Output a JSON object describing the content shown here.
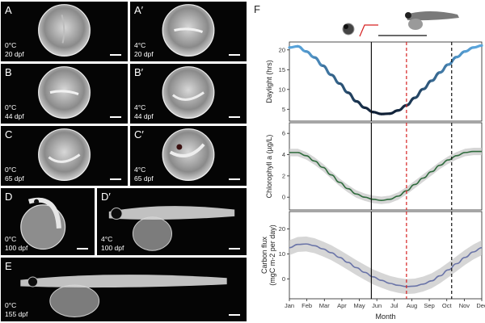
{
  "panels": [
    {
      "id": "A",
      "label": "A",
      "temp": "0°C",
      "age": "20 dpf",
      "stage": "egg-early"
    },
    {
      "id": "A2",
      "label": "A′",
      "temp": "4°C",
      "age": "20 dpf",
      "stage": "egg-embryo"
    },
    {
      "id": "B",
      "label": "B",
      "temp": "0°C",
      "age": "44 dpf",
      "stage": "egg-embryo"
    },
    {
      "id": "B2",
      "label": "B′",
      "temp": "4°C",
      "age": "44 dpf",
      "stage": "egg-curled"
    },
    {
      "id": "C",
      "label": "C",
      "temp": "0°C",
      "age": "65 dpf",
      "stage": "egg-curled"
    },
    {
      "id": "C2",
      "label": "C′",
      "temp": "4°C",
      "age": "65 dpf",
      "stage": "egg-eyed"
    },
    {
      "id": "D",
      "label": "D",
      "temp": "0°C",
      "age": "100 dpf",
      "stage": "hatching"
    },
    {
      "id": "D2",
      "label": "D′",
      "temp": "4°C",
      "age": "100 dpf",
      "stage": "larva"
    },
    {
      "id": "E",
      "label": "E",
      "temp": "0°C",
      "age": "155 dpf",
      "stage": "larva-big"
    }
  ],
  "figure": {
    "label": "F",
    "xlabel": "Month"
  },
  "legend_icons": [
    "egg-icon",
    "larva-icon"
  ],
  "colors": {
    "daylight_light": "#5aa6dd",
    "daylight_dark": "#0f1f35",
    "chlorophyll": "#2f6b3d",
    "carbon": "#6a74a8",
    "band": "#c8c8c8",
    "vline_red": "#d62020",
    "vline_black": "#111111"
  },
  "chart_data": [
    {
      "type": "line",
      "title": "",
      "xlabel": "Month",
      "ylabel": "Daylight (hrs)",
      "categories": [
        "Jan",
        "Feb",
        "Mar",
        "Apr",
        "May",
        "Jun",
        "Jul",
        "Aug",
        "Sep",
        "Oct",
        "Nov",
        "Dec"
      ],
      "ylim": [
        2,
        22
      ],
      "yticks": [
        5,
        10,
        15,
        20
      ],
      "x": [
        0,
        0.5,
        1,
        1.5,
        2,
        2.5,
        3,
        3.5,
        4,
        4.5,
        5,
        5.5,
        6,
        6.5,
        7,
        7.5,
        8,
        8.5,
        9,
        9.5,
        10,
        10.5,
        11,
        11.5
      ],
      "values": [
        20.6,
        20.9,
        19.6,
        18.1,
        16.0,
        13.7,
        11.5,
        9.2,
        7.0,
        5.4,
        4.3,
        3.8,
        3.9,
        4.7,
        6.0,
        7.9,
        10.1,
        12.2,
        14.3,
        16.3,
        18.2,
        19.6,
        20.6,
        21.1
      ],
      "vlines": [
        {
          "x": 4.9,
          "style": "solid",
          "color": "black"
        },
        {
          "x": 7.0,
          "style": "dashed",
          "color": "red"
        },
        {
          "x": 9.7,
          "style": "dashed",
          "color": "black"
        }
      ]
    },
    {
      "type": "line",
      "title": "",
      "xlabel": "Month",
      "ylabel": "Chlorophyll a (µg/L)",
      "categories": [
        "Jan",
        "Feb",
        "Mar",
        "Apr",
        "May",
        "Jun",
        "Jul",
        "Aug",
        "Sep",
        "Oct",
        "Nov",
        "Dec"
      ],
      "ylim": [
        -1.2,
        7
      ],
      "yticks": [
        0,
        2,
        4,
        6
      ],
      "x": [
        0,
        0.5,
        1,
        1.5,
        2,
        2.5,
        3,
        3.5,
        4,
        4.5,
        5,
        5.5,
        6,
        6.5,
        7,
        7.5,
        8,
        8.5,
        9,
        9.5,
        10,
        10.5,
        11,
        11.5
      ],
      "values": [
        4.2,
        4.2,
        3.9,
        3.4,
        2.8,
        2.1,
        1.4,
        0.8,
        0.3,
        0.0,
        -0.2,
        -0.3,
        -0.2,
        0.1,
        0.6,
        1.2,
        1.8,
        2.4,
        3.0,
        3.5,
        3.9,
        4.2,
        4.3,
        4.3
      ],
      "band_width": 0.35,
      "vlines": [
        {
          "x": 4.9,
          "style": "solid",
          "color": "black"
        },
        {
          "x": 7.0,
          "style": "dashed",
          "color": "red"
        },
        {
          "x": 9.7,
          "style": "dashed",
          "color": "black"
        }
      ]
    },
    {
      "type": "line",
      "title": "",
      "xlabel": "Month",
      "ylabel": "Carbon flux (mgC m-2 per day)",
      "categories": [
        "Jan",
        "Feb",
        "Mar",
        "Apr",
        "May",
        "Jun",
        "Jul",
        "Aug",
        "Sep",
        "Oct",
        "Nov",
        "Dec"
      ],
      "ylim": [
        -8,
        27
      ],
      "yticks": [
        0,
        10,
        20
      ],
      "x": [
        0,
        0.5,
        1,
        1.5,
        2,
        2.5,
        3,
        3.5,
        4,
        4.5,
        5,
        5.5,
        6,
        6.5,
        7,
        7.5,
        8,
        8.5,
        9,
        9.5,
        10,
        10.5,
        11,
        11.5
      ],
      "values": [
        12.5,
        13.8,
        14.0,
        13.3,
        12.0,
        10.5,
        8.6,
        6.6,
        4.5,
        2.6,
        0.8,
        -0.6,
        -1.8,
        -2.6,
        -3.1,
        -2.9,
        -2.1,
        -0.8,
        1.2,
        3.6,
        6.1,
        8.6,
        10.8,
        12.5
      ],
      "band_width": 3.0,
      "vlines": [
        {
          "x": 4.9,
          "style": "solid",
          "color": "black"
        },
        {
          "x": 7.0,
          "style": "dashed",
          "color": "red"
        },
        {
          "x": 9.7,
          "style": "dashed",
          "color": "black"
        }
      ]
    }
  ]
}
